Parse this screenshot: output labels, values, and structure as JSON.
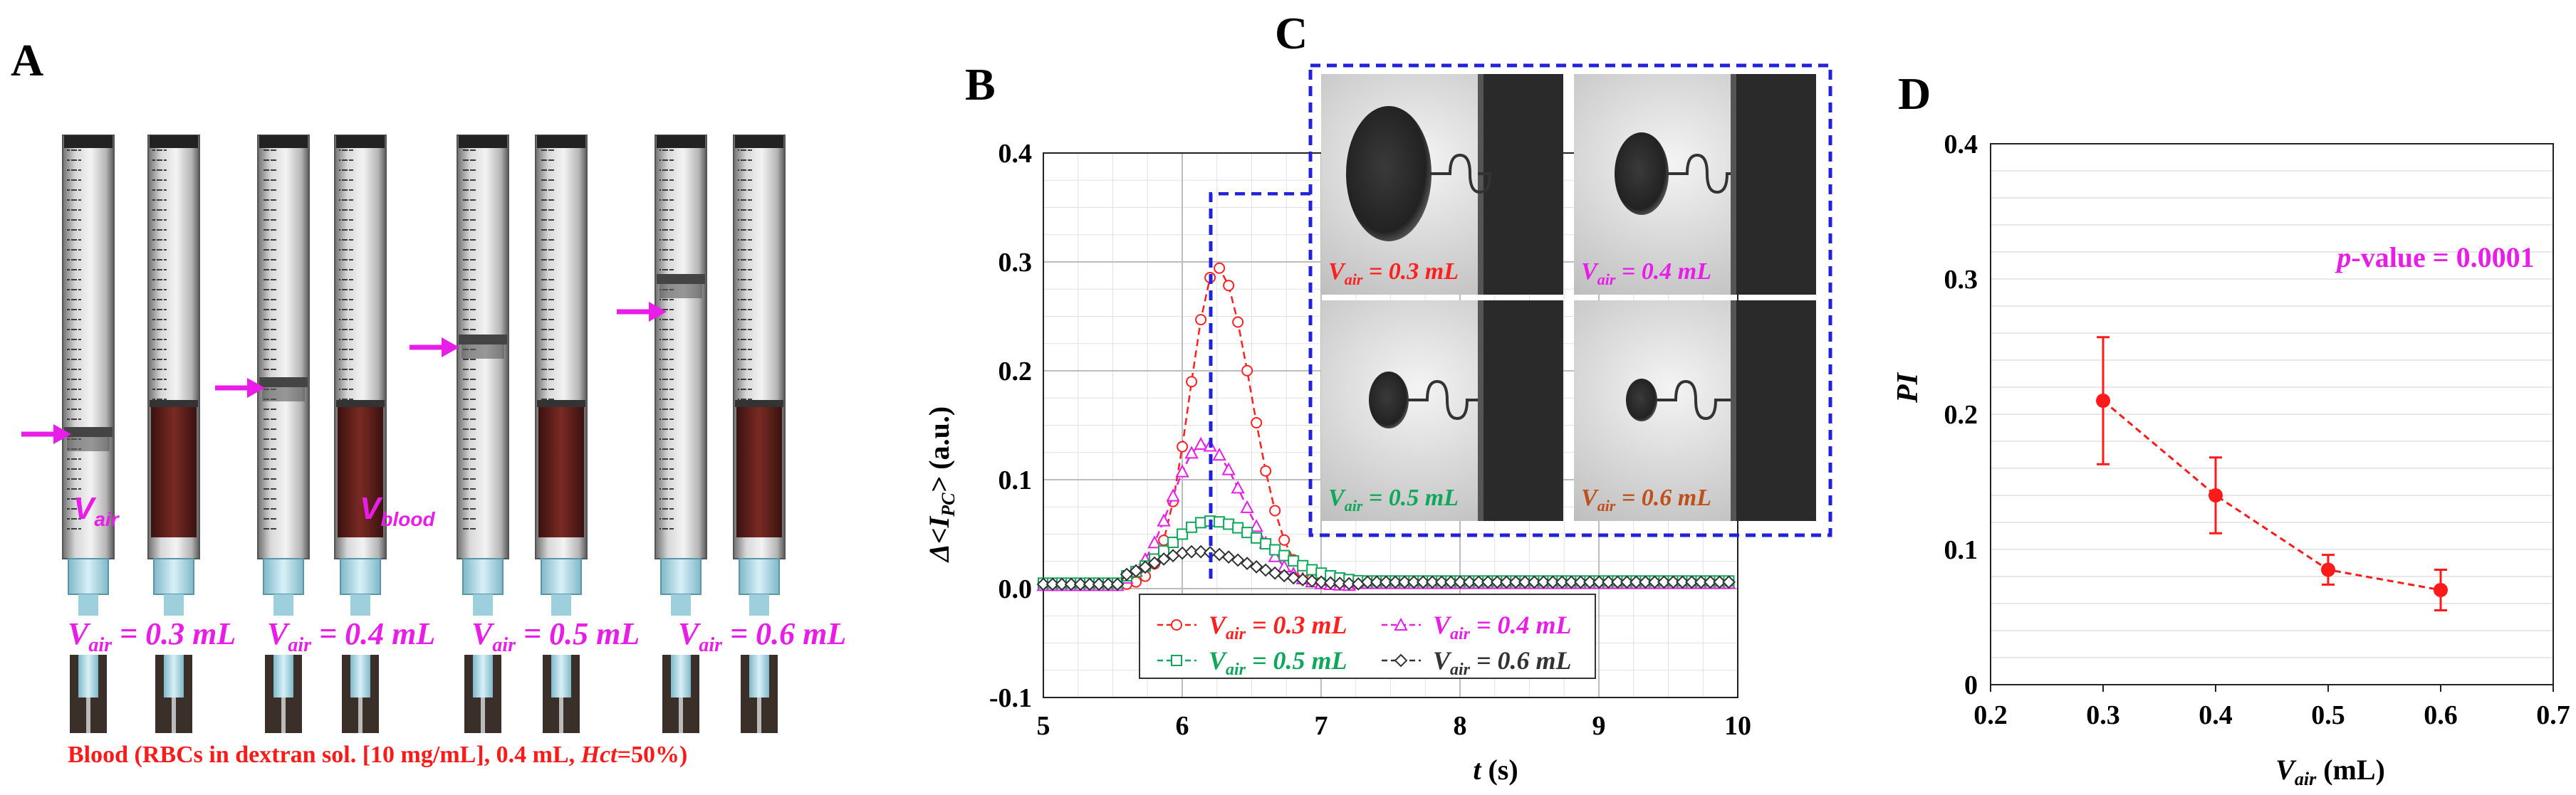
{
  "figure": {
    "panel_labels": {
      "A": "A",
      "B": "B",
      "C": "C",
      "D": "D"
    },
    "colors": {
      "magenta": "#e81ee8",
      "red": "#ff1a1a",
      "green": "#0fa85a",
      "black": "#222222",
      "brown": "#c0501a",
      "blue_dash": "#2222dd"
    }
  },
  "panel_a": {
    "annotations": {
      "v_air": "V",
      "v_air_sub": "air",
      "v_blood": "V",
      "v_blood_sub": "blood"
    },
    "syringe_labels": [
      {
        "prefix": "V",
        "sub": "air",
        "rest": " = 0.3 mL"
      },
      {
        "prefix": "V",
        "sub": "air",
        "rest": " = 0.4 mL"
      },
      {
        "prefix": "V",
        "sub": "air",
        "rest": " = 0.5 mL"
      },
      {
        "prefix": "V",
        "sub": "air",
        "rest": " = 0.6 mL"
      }
    ],
    "caption_main": "Blood (RBCs in dextran sol. [10 mg/mL], 0.4 mL, ",
    "caption_italic": "Hct",
    "caption_end": "=50%)"
  },
  "chart_data": [
    {
      "panel": "B",
      "type": "line",
      "xlabel": "t (s)",
      "ylabel": "Δ<I_PC> (a.u.)",
      "ylabel_parts": {
        "delta": "Δ",
        "open": "<",
        "I": "I",
        "sub": "PC",
        "close": ">",
        "unit": " (a.u.)"
      },
      "xlabel_parts": {
        "t": "t",
        "unit": " (s)"
      },
      "xlim": [
        5,
        10
      ],
      "ylim": [
        -0.1,
        0.4
      ],
      "x_ticks": [
        "5",
        "6",
        "7",
        "8",
        "9",
        "10"
      ],
      "y_ticks": [
        "-0.1",
        "0.0",
        "0.1",
        "0.2",
        "0.3",
        "0.4"
      ],
      "grid": true,
      "legend_location": "bottom-center",
      "series": [
        {
          "name": "V_air = 0.3 mL",
          "legend_prefix": "V",
          "legend_sub": "air",
          "legend_rest": " = 0.3 mL",
          "color": "#ff2020",
          "marker": "circle",
          "peak_t": 6.25,
          "peak_value": 0.295,
          "rise_sigma": 0.3,
          "fall_sigma": 0.38,
          "baseline": 0.003,
          "drop_t": 7.25
        },
        {
          "name": "V_air = 0.4 mL",
          "legend_prefix": "V",
          "legend_sub": "air",
          "legend_rest": " = 0.4 mL",
          "color": "#e81ee8",
          "marker": "triangle",
          "peak_t": 6.15,
          "peak_value": 0.133,
          "rise_sigma": 0.35,
          "fall_sigma": 0.45,
          "baseline": 0.003,
          "drop_t": 7.25
        },
        {
          "name": "V_air = 0.5 mL",
          "legend_prefix": "V",
          "legend_sub": "air",
          "legend_rest": " = 0.5 mL",
          "color": "#0fa85a",
          "marker": "square",
          "peak_t": 6.2,
          "peak_value": 0.062,
          "rise_sigma": 0.45,
          "fall_sigma": 0.65,
          "baseline": 0.005,
          "drop_t": 7.3
        },
        {
          "name": "V_air = 0.6 mL",
          "legend_prefix": "V",
          "legend_sub": "air",
          "legend_rest": " = 0.6 mL",
          "color": "#333333",
          "marker": "diamond",
          "peak_t": 6.1,
          "peak_value": 0.034,
          "rise_sigma": 0.5,
          "fall_sigma": 0.6,
          "baseline": 0.004,
          "drop_t": 7.3
        }
      ],
      "marker_line_t": 6.2
    },
    {
      "panel": "D",
      "type": "scatter",
      "xlabel": "V_air (mL)",
      "xlabel_parts": {
        "V": "V",
        "sub": "air",
        "unit": " (mL)"
      },
      "ylabel": "PI",
      "xlim": [
        0.2,
        0.7
      ],
      "ylim": [
        0,
        0.4
      ],
      "x_ticks": [
        "0.2",
        "0.3",
        "0.4",
        "0.5",
        "0.6",
        "0.7"
      ],
      "y_ticks": [
        "0",
        "0.1",
        "0.2",
        "0.3",
        "0.4"
      ],
      "grid": true,
      "annotation_p": "p",
      "annotation_rest": "-value = 0.0001",
      "series": [
        {
          "name": "PI",
          "color": "#ff1a1a",
          "x": [
            0.3,
            0.4,
            0.5,
            0.6
          ],
          "y": [
            0.21,
            0.14,
            0.085,
            0.07
          ],
          "err": [
            0.047,
            0.028,
            0.011,
            0.015
          ]
        }
      ]
    }
  ],
  "panel_c": {
    "thumbs": [
      {
        "prefix": "V",
        "sub": "air",
        "rest": " = 0.3 mL",
        "color": "#ff2020",
        "blob_rx": 60,
        "blob_ry": 95
      },
      {
        "prefix": "V",
        "sub": "air",
        "rest": " = 0.4 mL",
        "color": "#e81ee8",
        "blob_rx": 38,
        "blob_ry": 58
      },
      {
        "prefix": "V",
        "sub": "air",
        "rest": " = 0.5 mL",
        "color": "#0fa85a",
        "blob_rx": 28,
        "blob_ry": 40
      },
      {
        "prefix": "V",
        "sub": "air",
        "rest": " = 0.6 mL",
        "color": "#c0501a",
        "blob_rx": 22,
        "blob_ry": 30
      }
    ]
  }
}
